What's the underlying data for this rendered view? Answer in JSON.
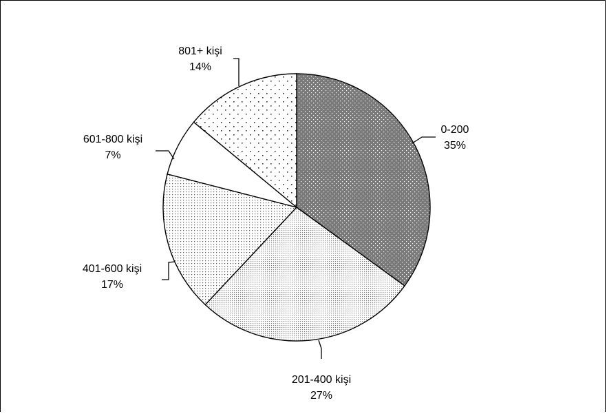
{
  "chart_data": {
    "type": "pie",
    "title": "",
    "legend": "none",
    "slices": [
      {
        "category": "0-200",
        "value": 35,
        "label": "35%",
        "pattern": "dense-dark"
      },
      {
        "category": "201-400 kişi",
        "value": 27,
        "label": "27%",
        "pattern": "fine-dot"
      },
      {
        "category": "401-600 kişi",
        "value": 17,
        "label": "17%",
        "pattern": "small-dot"
      },
      {
        "category": "601-800 kişi",
        "value": 7,
        "label": "7%",
        "pattern": "solid-white"
      },
      {
        "category": "801+ kişi",
        "value": 14,
        "label": "14%",
        "pattern": "sparse-dot"
      }
    ]
  }
}
